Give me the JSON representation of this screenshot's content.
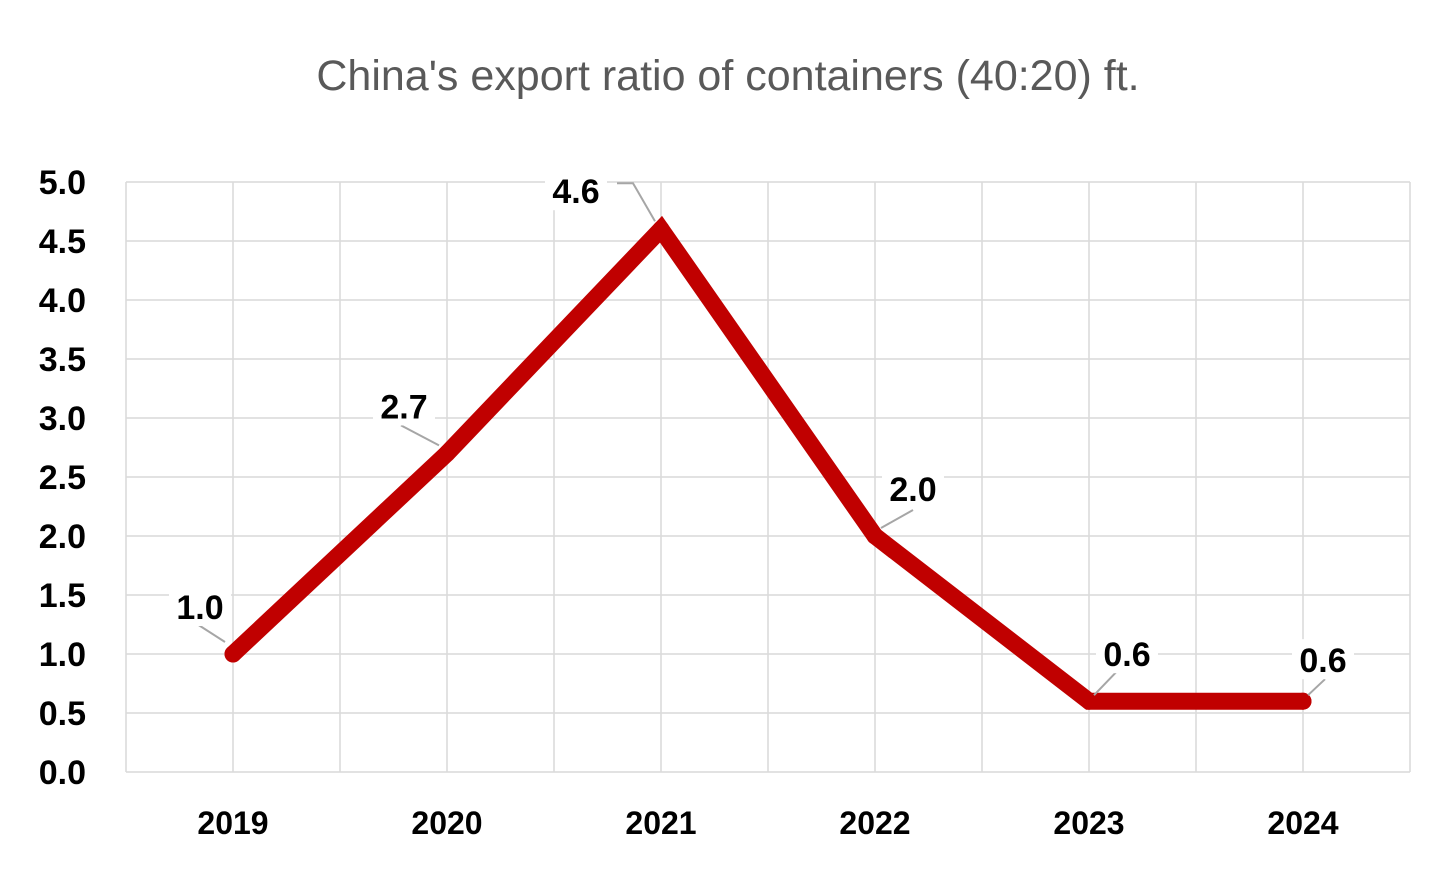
{
  "chart_data": {
    "type": "line",
    "title": "China's export ratio of containers (40:20) ft.",
    "categories": [
      "2019",
      "2020",
      "2021",
      "2022",
      "2023",
      "2024"
    ],
    "series": [
      {
        "values": [
          1.0,
          2.7,
          4.6,
          2.0,
          0.6,
          0.6
        ]
      }
    ],
    "data_labels": [
      "1.0",
      "2.7",
      "4.6",
      "2.0",
      "0.6",
      "0.6"
    ],
    "y_ticks": [
      "0.0",
      "0.5",
      "1.0",
      "1.5",
      "2.0",
      "2.5",
      "3.0",
      "3.5",
      "4.0",
      "4.5",
      "5.0"
    ],
    "ylim": [
      0,
      5
    ],
    "grid": true,
    "legend": "none",
    "colors": {
      "line": "#c00000",
      "grid": "#d9d9d9",
      "leader": "#a6a6a6",
      "title": "#595959"
    }
  }
}
